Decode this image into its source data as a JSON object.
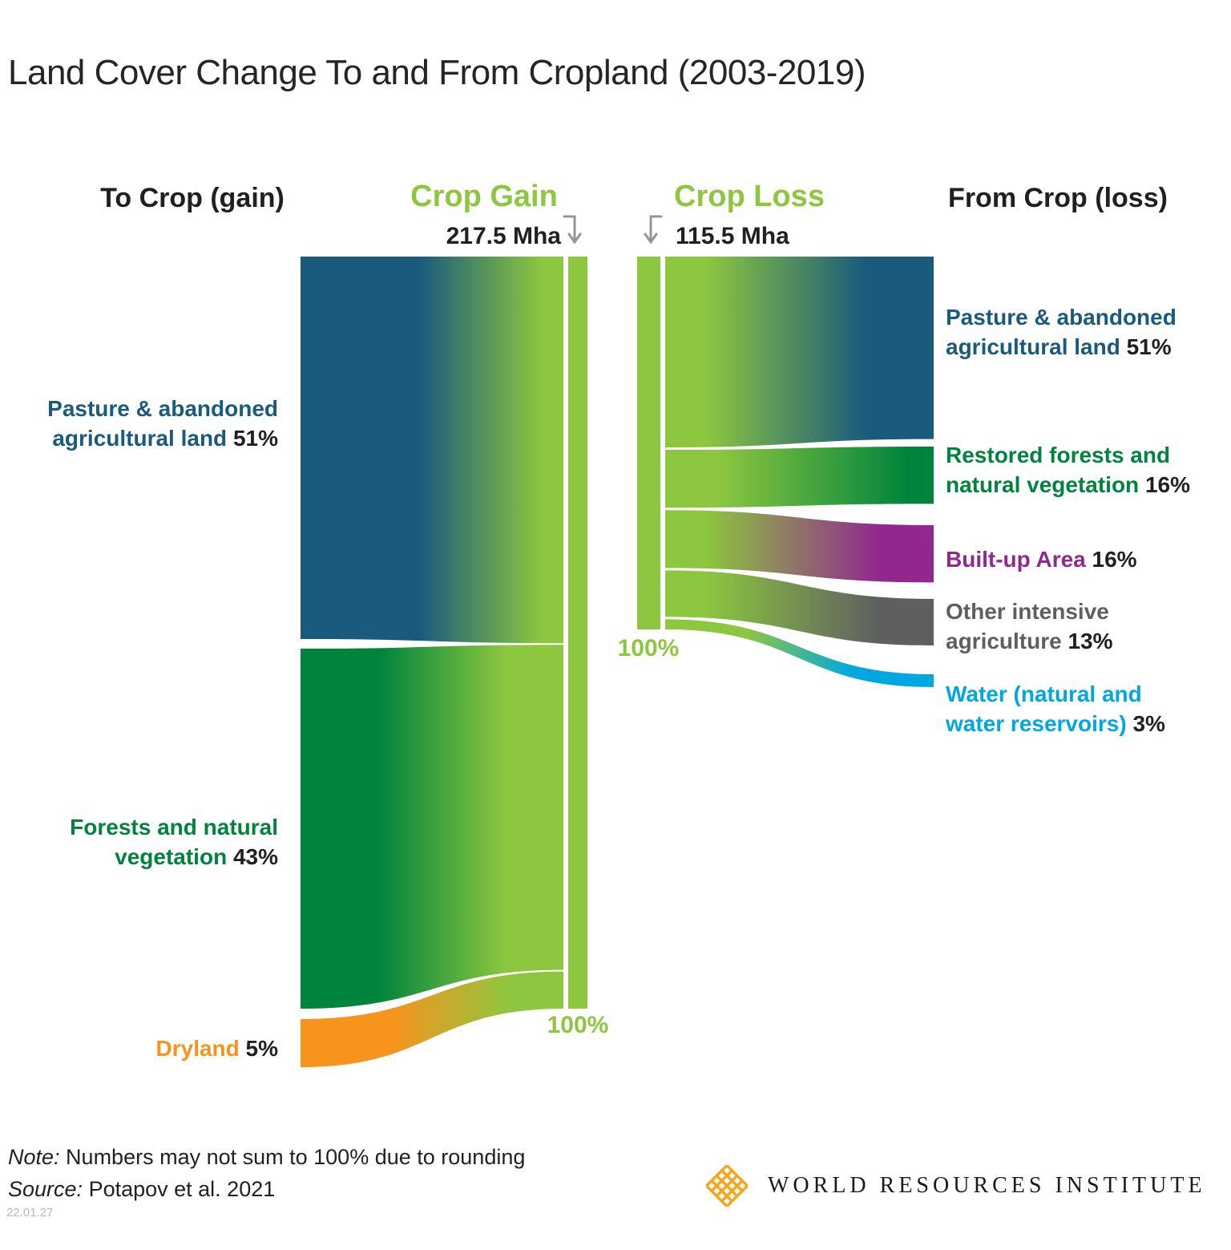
{
  "chart_data": {
    "type": "sankey",
    "title": "Land Cover Change To and From Cropland (2003-2019)",
    "unit": "Mha",
    "colors": {
      "crop": "#8dc63f",
      "arrow": "#939598"
    },
    "left": {
      "header": "To Crop (gain)",
      "flow_title": "Crop Gain",
      "flow_total": "217.5 Mha",
      "crop_label": "100%",
      "nodes": [
        {
          "label": "Pasture & abandoned agricultural land",
          "pct": 51,
          "pct_text": "51%",
          "color": "#1a5a7d"
        },
        {
          "label": "Forests and natural vegetation",
          "pct": 43,
          "pct_text": "43%",
          "color": "#00843d"
        },
        {
          "label": "Dryland",
          "pct": 5,
          "pct_text": "5%",
          "color": "#f7941e"
        }
      ]
    },
    "right": {
      "header": "From Crop (loss)",
      "flow_title": "Crop Loss",
      "flow_total": "115.5 Mha",
      "crop_label": "100%",
      "nodes": [
        {
          "label": "Pasture & abandoned agricultural land",
          "pct": 51,
          "pct_text": "51%",
          "color": "#1a5a7d"
        },
        {
          "label": "Restored forests and natural vegetation",
          "pct": 16,
          "pct_text": "16%",
          "color": "#00843d"
        },
        {
          "label": "Built-up Area",
          "pct": 16,
          "pct_text": "16%",
          "color": "#92278f"
        },
        {
          "label": "Other intensive agriculture",
          "pct": 13,
          "pct_text": "13%",
          "color": "#5e5f61"
        },
        {
          "label": "Water (natural and water reservoirs)",
          "pct": 3,
          "pct_text": "3%",
          "color": "#00a7e1"
        }
      ]
    }
  },
  "footer": {
    "note_label": "Note:",
    "note_text": " Numbers may not sum to 100% due to rounding",
    "source_label": "Source:",
    "source_text": " Potapov et al. 2021",
    "stamp": "22.01.27",
    "logo_text": "WORLD RESOURCES INSTITUTE"
  }
}
